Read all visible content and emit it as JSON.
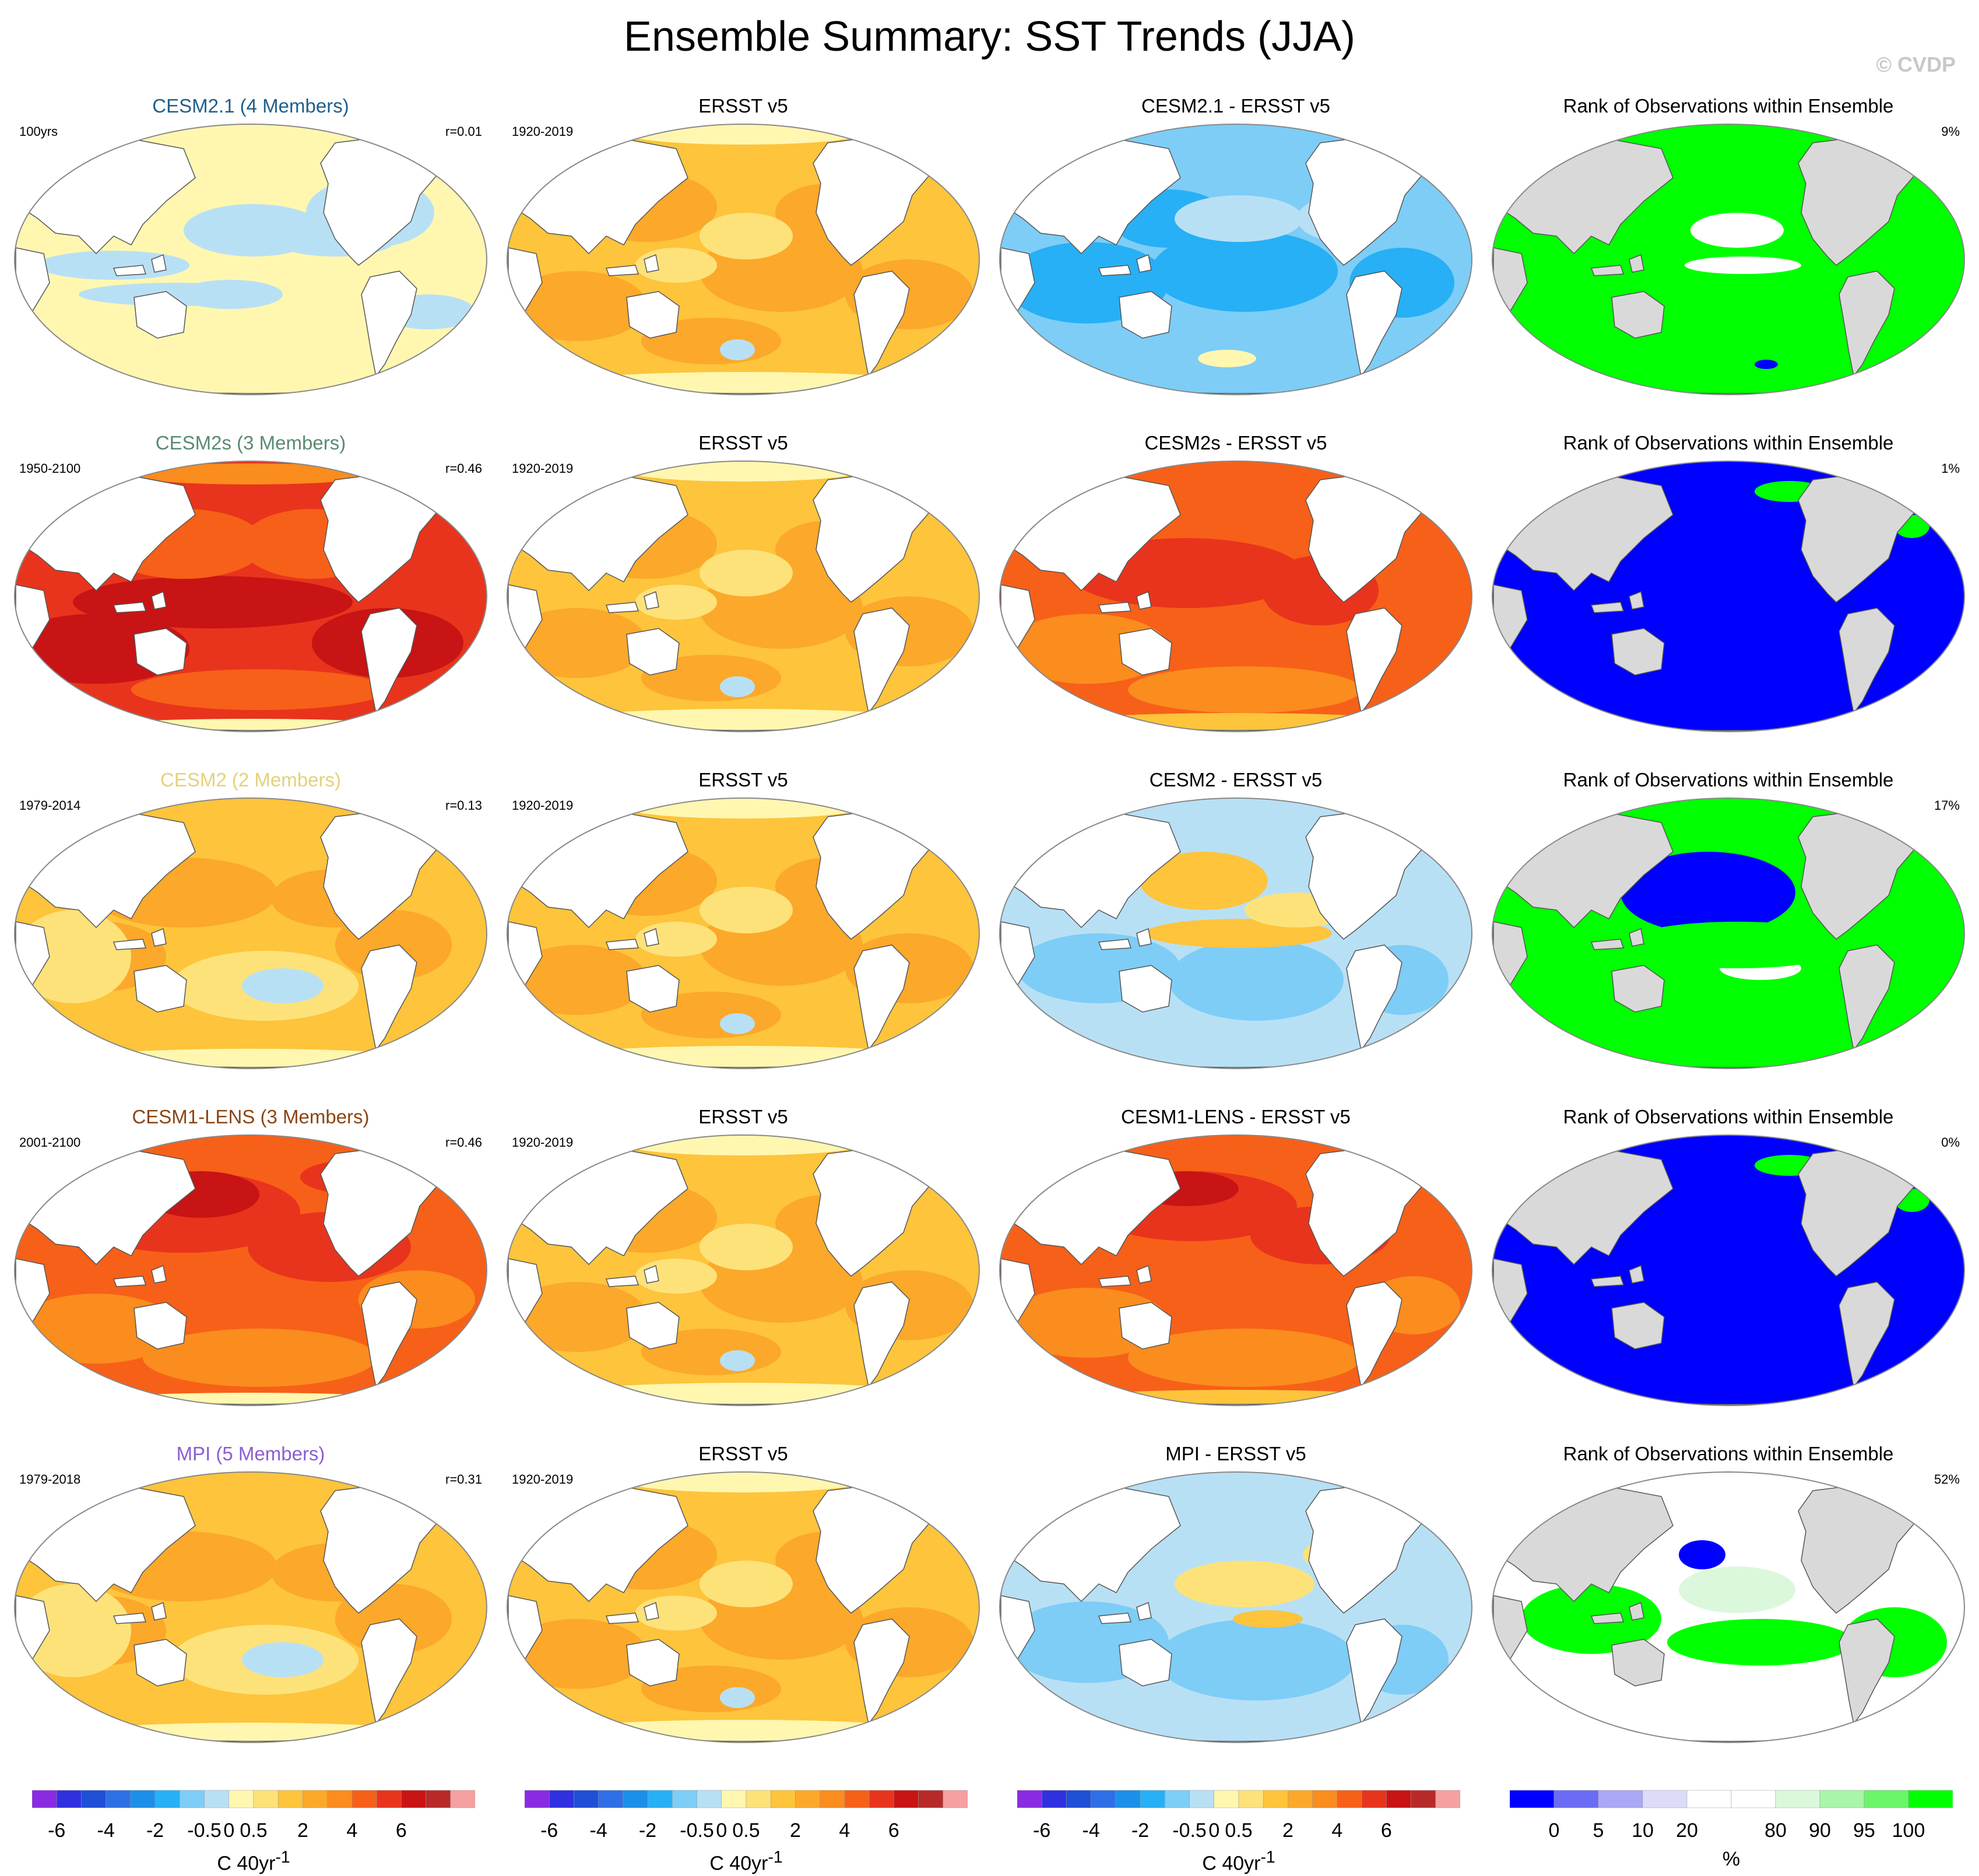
{
  "title": "Ensemble Summary: SST Trends (JJA)",
  "credit": "© CVDP",
  "rows": [
    {
      "model": {
        "title": "CESM2.1 (4 Members)",
        "title_color": "#1f5f8b",
        "period": "100yrs",
        "r": "r=0.01",
        "scheme": "cesm21"
      },
      "obs": {
        "title": "ERSST v5",
        "period": "1920-2019",
        "scheme": "obs"
      },
      "diff": {
        "title": "CESM2.1 - ERSST v5",
        "scheme": "diff_cool"
      },
      "rank": {
        "title": "Rank of Observations within Ensemble",
        "percent": "9%",
        "scheme": "rank_green"
      }
    },
    {
      "model": {
        "title": "CESM2s (3 Members)",
        "title_color": "#5b8a72",
        "period": "1950-2100",
        "r": "r=0.46",
        "scheme": "hot"
      },
      "obs": {
        "title": "ERSST v5",
        "period": "1920-2019",
        "scheme": "obs"
      },
      "diff": {
        "title": "CESM2s - ERSST v5",
        "scheme": "diff_hot"
      },
      "rank": {
        "title": "Rank of Observations within Ensemble",
        "percent": "1%",
        "scheme": "rank_blue"
      }
    },
    {
      "model": {
        "title": "CESM2 (2 Members)",
        "title_color": "#e3d27a",
        "period": "1979-2014",
        "r": "r=0.13",
        "scheme": "warm"
      },
      "obs": {
        "title": "ERSST v5",
        "period": "1920-2019",
        "scheme": "obs"
      },
      "diff": {
        "title": "CESM2 - ERSST v5",
        "scheme": "diff_mixed"
      },
      "rank": {
        "title": "Rank of Observations within Ensemble",
        "percent": "17%",
        "scheme": "rank_mixed"
      }
    },
    {
      "model": {
        "title": "CESM1-LENS (3 Members)",
        "title_color": "#8b4513",
        "period": "2001-2100",
        "r": "r=0.46",
        "scheme": "hot2"
      },
      "obs": {
        "title": "ERSST v5",
        "period": "1920-2019",
        "scheme": "obs"
      },
      "diff": {
        "title": "CESM1-LENS - ERSST v5",
        "scheme": "diff_hot2"
      },
      "rank": {
        "title": "Rank of Observations within Ensemble",
        "percent": "0%",
        "scheme": "rank_blue"
      }
    },
    {
      "model": {
        "title": "MPI (5 Members)",
        "title_color": "#8a5fd1",
        "period": "1979-2018",
        "r": "r=0.31",
        "scheme": "warm"
      },
      "obs": {
        "title": "ERSST v5",
        "period": "1920-2019",
        "scheme": "obs"
      },
      "diff": {
        "title": "MPI - ERSST v5",
        "scheme": "diff_cool2"
      },
      "rank": {
        "title": "Rank of Observations within Ensemble",
        "percent": "52%",
        "scheme": "rank_white"
      }
    }
  ],
  "trend_colorbar": {
    "colors": [
      "#8a2be2",
      "#3030e0",
      "#1f4fd6",
      "#2f6fe6",
      "#1c8fe8",
      "#27b0f5",
      "#7dcdf7",
      "#b8e0f5",
      "#fff7b0",
      "#fde27a",
      "#fdc43c",
      "#fca82a",
      "#fb8c1e",
      "#f76018",
      "#e8341c",
      "#c81414",
      "#b82a2a",
      "#f5a0a0"
    ],
    "tick_labels": [
      "-6",
      "-4",
      "-2",
      "-0.5",
      "0",
      "0.5",
      "2",
      "4",
      "6"
    ],
    "tick_after_box": [
      1,
      3,
      5,
      7,
      8,
      9,
      11,
      13,
      15
    ],
    "units": "C 40yr",
    "units_exponent": "-1"
  },
  "rank_colorbar": {
    "colors": [
      "#0000ff",
      "#6b6bf5",
      "#a9a9f5",
      "#dcdcf8",
      "#ffffff",
      "#ffffff",
      "#dcf8dc",
      "#a9f5a9",
      "#6bf56b",
      "#00ff00"
    ],
    "tick_labels": [
      "0",
      "5",
      "10",
      "20",
      "80",
      "90",
      "95",
      "100"
    ],
    "tick_after_box": [
      1,
      2,
      3,
      4,
      6,
      7,
      8,
      9
    ],
    "units": "%"
  },
  "chart_data": {
    "type": "heatmap",
    "title": "Ensemble Summary: SST Trends (JJA)",
    "projection": "global map panels (5 rows x 4 columns)",
    "columns": [
      "model ensemble mean trend",
      "ERSST v5 trend",
      "model minus ERSST v5",
      "rank of observations within ensemble"
    ],
    "trend_levels": [
      -6,
      -4,
      -2,
      -0.5,
      0,
      0.5,
      2,
      4,
      6
    ],
    "rank_levels": [
      0,
      5,
      10,
      20,
      80,
      90,
      95,
      100
    ],
    "panels": [
      {
        "row": 1,
        "model": "CESM2.1 (4 Members)",
        "period": "100yrs",
        "pattern_correlation": 0.01,
        "rank_percent": 9
      },
      {
        "row": 2,
        "model": "CESM2s (3 Members)",
        "period": "1950-2100",
        "pattern_correlation": 0.46,
        "rank_percent": 1
      },
      {
        "row": 3,
        "model": "CESM2 (2 Members)",
        "period": "1979-2014",
        "pattern_correlation": 0.13,
        "rank_percent": 17
      },
      {
        "row": 4,
        "model": "CESM1-LENS (3 Members)",
        "period": "2001-2100",
        "pattern_correlation": 0.46,
        "rank_percent": 0
      },
      {
        "row": 5,
        "model": "MPI (5 Members)",
        "period": "1979-2018",
        "pattern_correlation": 0.31,
        "rank_percent": 52
      }
    ],
    "observations": {
      "name": "ERSST v5",
      "period": "1920-2019"
    }
  }
}
